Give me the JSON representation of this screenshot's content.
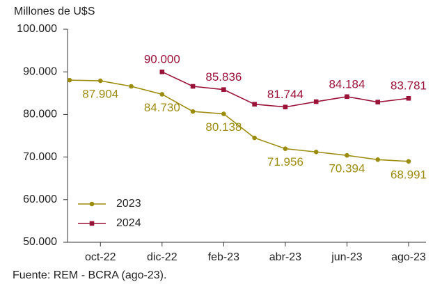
{
  "chart_data": {
    "type": "line",
    "y_axis_label": "Millones de U$S",
    "source": "Fuente: REM - BCRA (ago-23).",
    "categories": [
      null,
      "oct-22",
      null,
      "dic-22",
      null,
      "feb-23",
      null,
      "abr-23",
      null,
      "jun-23",
      null,
      "ago-23"
    ],
    "series": [
      {
        "name": "2023",
        "color": "#9c8c0e",
        "values": [
          88050,
          87904,
          86600,
          84730,
          80700,
          80138,
          74500,
          71956,
          71200,
          70394,
          69400,
          68991
        ],
        "value_labels": [
          null,
          "87.904",
          null,
          "84.730",
          null,
          "80.138",
          null,
          "71.956",
          null,
          "70.394",
          null,
          "68.991"
        ]
      },
      {
        "name": "2024",
        "color": "#9b1239",
        "values": [
          null,
          null,
          null,
          90000,
          86600,
          85836,
          82400,
          81744,
          83000,
          84184,
          82900,
          83781
        ],
        "value_labels": [
          null,
          null,
          null,
          "90.000",
          null,
          "85.836",
          null,
          "81.744",
          null,
          "84.184",
          null,
          "83.781"
        ]
      }
    ],
    "ylim": [
      50000,
      100000
    ],
    "yticks": [
      {
        "value": 50000,
        "label": "50.000"
      },
      {
        "value": 60000,
        "label": "60.000"
      },
      {
        "value": 70000,
        "label": "70.000"
      },
      {
        "value": 80000,
        "label": "80.000"
      },
      {
        "value": 90000,
        "label": "90.000"
      },
      {
        "value": 100000,
        "label": "100.000"
      }
    ],
    "legend": "lower left"
  }
}
